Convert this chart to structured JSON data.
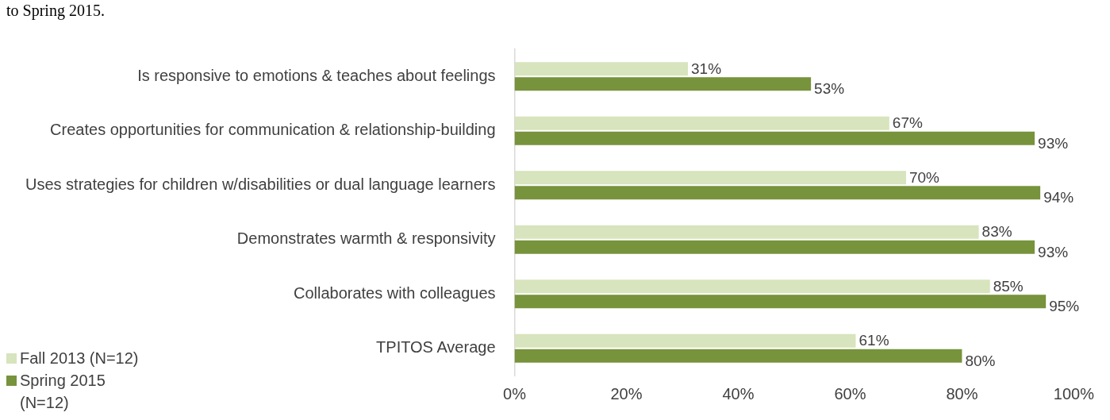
{
  "chart_data": {
    "type": "bar",
    "orientation": "horizontal",
    "title": "to Spring 2015.",
    "categories": [
      "Is responsive to emotions & teaches about feelings",
      "Creates opportunities for communication & relationship-building",
      "Uses strategies for children w/disabilities or dual language learners",
      "Demonstrates warmth & responsivity",
      "Collaborates with colleagues",
      "TPITOS Average"
    ],
    "series": [
      {
        "name": "Fall 2013 (N=12)",
        "color": "#d7e4bd",
        "values": [
          31,
          67,
          70,
          83,
          85,
          61
        ],
        "value_labels": [
          "31%",
          "67%",
          "70%",
          "83%",
          "85%",
          "61%"
        ]
      },
      {
        "name": "Spring 2015 (N=12)",
        "color": "#77933c",
        "values": [
          53,
          93,
          94,
          93,
          95,
          80
        ],
        "value_labels": [
          "53%",
          "93%",
          "94%",
          "93%",
          "95%",
          "80%"
        ]
      }
    ],
    "xlim": [
      0,
      100
    ],
    "xticks": [
      {
        "value": 0,
        "label": "0%"
      },
      {
        "value": 20,
        "label": "20%"
      },
      {
        "value": 40,
        "label": "40%"
      },
      {
        "value": 60,
        "label": "60%"
      },
      {
        "value": 80,
        "label": "80%"
      },
      {
        "value": 100,
        "label": "100%"
      }
    ],
    "grid": false,
    "legend": "bottom left"
  }
}
